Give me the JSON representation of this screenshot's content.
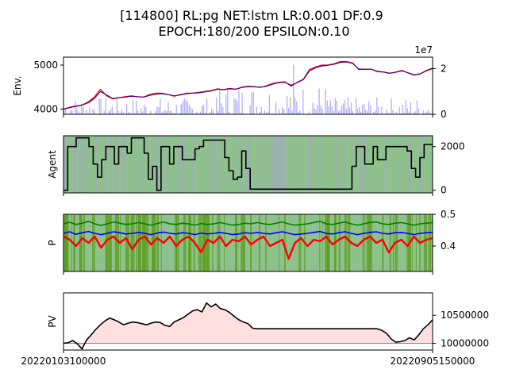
{
  "title_line1": "[114800] RL:pg NET:lstm LR:0.001 DF:0.9",
  "title_line2": "EPOCH:180/200 EPSILON:0.10",
  "chart_data": [
    {
      "type": "line",
      "name": "env",
      "ylabel": "Env.",
      "ylim": [
        3880,
        5180
      ],
      "yticks": [
        4000,
        5000
      ],
      "right_axis": {
        "ylim": [
          0,
          25000000
        ],
        "ticks": [
          "0",
          "2"
        ],
        "tick_values": [
          0,
          20000000
        ],
        "offset_label": "1e7"
      },
      "series": [
        {
          "name": "price",
          "color": "#ff0000",
          "values": [
            4000,
            4040,
            4070,
            4090,
            4160,
            4270,
            4450,
            4300,
            4230,
            4260,
            4280,
            4300,
            4280,
            4270,
            4330,
            4360,
            4360,
            4330,
            4290,
            4330,
            4360,
            4360,
            4380,
            4400,
            4420,
            4460,
            4440,
            4470,
            4450,
            4500,
            4520,
            4510,
            4490,
            4530,
            4580,
            4610,
            4620,
            4520,
            4610,
            4680,
            4900,
            4960,
            5000,
            5000,
            5030,
            5080,
            5080,
            5050,
            4900,
            4900,
            4910,
            4850,
            4840,
            4810,
            4840,
            4880,
            4820,
            4770,
            4800,
            4880,
            4930
          ]
        },
        {
          "name": "moving-average",
          "color": "#4b0082",
          "values": [
            4000,
            4030,
            4060,
            4090,
            4140,
            4240,
            4400,
            4320,
            4240,
            4260,
            4270,
            4290,
            4280,
            4270,
            4310,
            4340,
            4350,
            4330,
            4300,
            4320,
            4350,
            4360,
            4370,
            4390,
            4410,
            4450,
            4440,
            4460,
            4450,
            4490,
            4510,
            4505,
            4495,
            4520,
            4565,
            4600,
            4610,
            4540,
            4600,
            4670,
            4870,
            4940,
            4980,
            4995,
            5020,
            5060,
            5070,
            5040,
            4910,
            4905,
            4905,
            4860,
            4845,
            4815,
            4835,
            4870,
            4825,
            4780,
            4800,
            4870,
            4920
          ]
        }
      ],
      "volume_bars": {
        "color": "#b0b0ff",
        "note": "right axis volume"
      }
    },
    {
      "type": "line",
      "name": "agent",
      "ylabel": "Agent",
      "ylim": [
        -120,
        2500
      ],
      "yticks": [
        0,
        2000
      ],
      "series": [
        {
          "name": "holdings",
          "color": "#000000",
          "values": [
            0,
            2000,
            2000,
            2400,
            2400,
            2400,
            2000,
            1200,
            600,
            1400,
            2000,
            2000,
            1200,
            2000,
            2000,
            1700,
            2400,
            2400,
            2400,
            1700,
            500,
            1100,
            0,
            2000,
            2000,
            1200,
            2000,
            2000,
            1400,
            1400,
            1400,
            1900,
            2000,
            2300,
            2300,
            2300,
            2300,
            2300,
            1500,
            900,
            500,
            600,
            1800,
            1000,
            50,
            50,
            50,
            50,
            50,
            50,
            50,
            50,
            50,
            50,
            50,
            50,
            50,
            50,
            50,
            50,
            50,
            50,
            50,
            50,
            50,
            50,
            50,
            50,
            1100,
            2000,
            2000,
            1200,
            1200,
            2000,
            1400,
            1400,
            2000,
            2000,
            2000,
            2000,
            2000,
            1800,
            1000,
            600,
            1500,
            2100,
            2100
          ]
        }
      ]
    },
    {
      "type": "line",
      "name": "policy",
      "ylabel": "P",
      "ylim": [
        0.32,
        0.5
      ],
      "yticks": [
        0.4,
        0.5
      ],
      "series": [
        {
          "name": "green",
          "color": "#008000",
          "values": [
            0.47,
            0.475,
            0.468,
            0.472,
            0.478,
            0.47,
            0.465,
            0.47,
            0.476,
            0.472,
            0.468,
            0.47,
            0.474,
            0.47,
            0.466,
            0.471,
            0.476,
            0.47,
            0.468,
            0.472,
            0.47,
            0.466,
            0.471,
            0.468,
            0.47,
            0.474,
            0.47,
            0.466,
            0.468,
            0.472,
            0.47,
            0.474,
            0.47,
            0.468,
            0.472,
            0.476,
            0.47,
            0.466,
            0.468,
            0.47,
            0.474,
            0.478,
            0.47,
            0.468,
            0.472,
            0.476,
            0.47,
            0.466,
            0.47,
            0.474,
            0.476,
            0.47,
            0.468,
            0.472,
            0.474,
            0.47,
            0.466,
            0.47,
            0.472,
            0.474
          ]
        },
        {
          "name": "blue",
          "color": "#0000ff",
          "values": [
            0.44,
            0.445,
            0.437,
            0.442,
            0.446,
            0.44,
            0.436,
            0.44,
            0.445,
            0.442,
            0.438,
            0.44,
            0.443,
            0.44,
            0.436,
            0.441,
            0.444,
            0.44,
            0.438,
            0.442,
            0.44,
            0.436,
            0.441,
            0.438,
            0.44,
            0.443,
            0.44,
            0.436,
            0.438,
            0.442,
            0.44,
            0.443,
            0.44,
            0.438,
            0.442,
            0.445,
            0.44,
            0.436,
            0.438,
            0.44,
            0.443,
            0.446,
            0.44,
            0.438,
            0.442,
            0.445,
            0.44,
            0.436,
            0.44,
            0.443,
            0.445,
            0.44,
            0.438,
            0.442,
            0.443,
            0.44,
            0.436,
            0.44,
            0.442,
            0.443
          ]
        },
        {
          "name": "red",
          "color": "#ff0000",
          "values": [
            0.43,
            0.42,
            0.4,
            0.425,
            0.41,
            0.43,
            0.395,
            0.42,
            0.43,
            0.41,
            0.425,
            0.39,
            0.42,
            0.43,
            0.405,
            0.425,
            0.41,
            0.43,
            0.4,
            0.42,
            0.43,
            0.41,
            0.38,
            0.42,
            0.41,
            0.43,
            0.4,
            0.42,
            0.415,
            0.43,
            0.405,
            0.42,
            0.43,
            0.4,
            0.41,
            0.42,
            0.36,
            0.41,
            0.425,
            0.4,
            0.42,
            0.415,
            0.43,
            0.405,
            0.42,
            0.43,
            0.41,
            0.4,
            0.42,
            0.43,
            0.41,
            0.42,
            0.38,
            0.41,
            0.42,
            0.4,
            0.43,
            0.41,
            0.42,
            0.425
          ]
        }
      ],
      "background_bands": [
        "#6aa84f",
        "#88c488"
      ]
    },
    {
      "type": "area",
      "name": "portfolio-value",
      "ylabel": "PV",
      "ylim": [
        9880000,
        10900000
      ],
      "yticks": [
        10000000,
        10500000
      ],
      "baseline": 10000000,
      "fill_color": "#ffe0e0",
      "x_tick_labels": [
        "20220103100000",
        "20220905150000"
      ],
      "series": [
        {
          "name": "pv",
          "color": "#000000",
          "values": [
            10000000,
            10010000,
            10050000,
            9990000,
            9900000,
            10060000,
            10150000,
            10250000,
            10330000,
            10400000,
            10450000,
            10420000,
            10380000,
            10330000,
            10360000,
            10380000,
            10370000,
            10350000,
            10330000,
            10360000,
            10380000,
            10370000,
            10320000,
            10300000,
            10380000,
            10420000,
            10460000,
            10520000,
            10580000,
            10600000,
            10560000,
            10720000,
            10650000,
            10700000,
            10620000,
            10600000,
            10550000,
            10480000,
            10420000,
            10380000,
            10350000,
            10270000,
            10260000,
            10260000,
            10260000,
            10260000,
            10260000,
            10260000,
            10260000,
            10260000,
            10260000,
            10260000,
            10260000,
            10260000,
            10260000,
            10260000,
            10260000,
            10260000,
            10260000,
            10260000,
            10260000,
            10260000,
            10260000,
            10260000,
            10260000,
            10260000,
            10260000,
            10260000,
            10260000,
            10230000,
            10180000,
            10080000,
            10020000,
            10030000,
            10050000,
            10100000,
            10060000,
            10150000,
            10260000,
            10330000,
            10420000
          ]
        }
      ]
    }
  ]
}
